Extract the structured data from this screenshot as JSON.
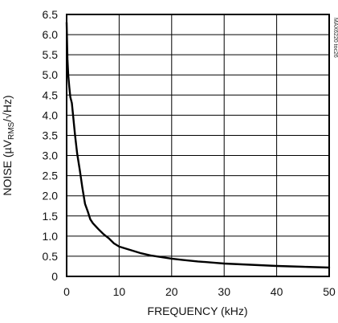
{
  "chart_data": {
    "type": "line",
    "title": "",
    "xlabel": "FREQUENCY (kHz)",
    "ylabel": "NOISE (µV",
    "ylabel_sub": "RMS",
    "ylabel_tail": "/√Hz)",
    "side_code": "MAX6220 toc26",
    "xlim": [
      0,
      50
    ],
    "ylim": [
      0,
      6.5
    ],
    "x_ticks": [
      "0",
      "10",
      "20",
      "30",
      "40",
      "50"
    ],
    "y_ticks": [
      "0",
      "0.5",
      "1.0",
      "1.5",
      "2.0",
      "2.5",
      "3.0",
      "3.5",
      "4.0",
      "4.5",
      "5.0",
      "5.5",
      "6.0",
      "6.5"
    ],
    "grid": true,
    "series": [
      {
        "x": [
          0.0,
          0.15,
          0.3,
          0.5,
          0.7,
          1.0,
          1.3,
          1.6,
          2.0,
          2.5,
          3.0,
          3.5,
          4.0,
          4.5,
          5.0,
          6.0,
          7.0,
          8.0,
          9.0,
          10.0,
          12.0,
          14.0,
          16.0,
          18.0,
          20.0,
          22.0,
          25.0,
          28.0,
          30.0,
          35.0,
          40.0,
          45.0,
          50.0
        ],
        "y": [
          6.3,
          5.4,
          5.0,
          4.7,
          4.45,
          4.3,
          3.9,
          3.5,
          3.05,
          2.65,
          2.2,
          1.8,
          1.62,
          1.42,
          1.32,
          1.18,
          1.05,
          0.95,
          0.82,
          0.74,
          0.66,
          0.58,
          0.52,
          0.48,
          0.44,
          0.41,
          0.37,
          0.34,
          0.32,
          0.29,
          0.26,
          0.24,
          0.22
        ]
      }
    ]
  }
}
